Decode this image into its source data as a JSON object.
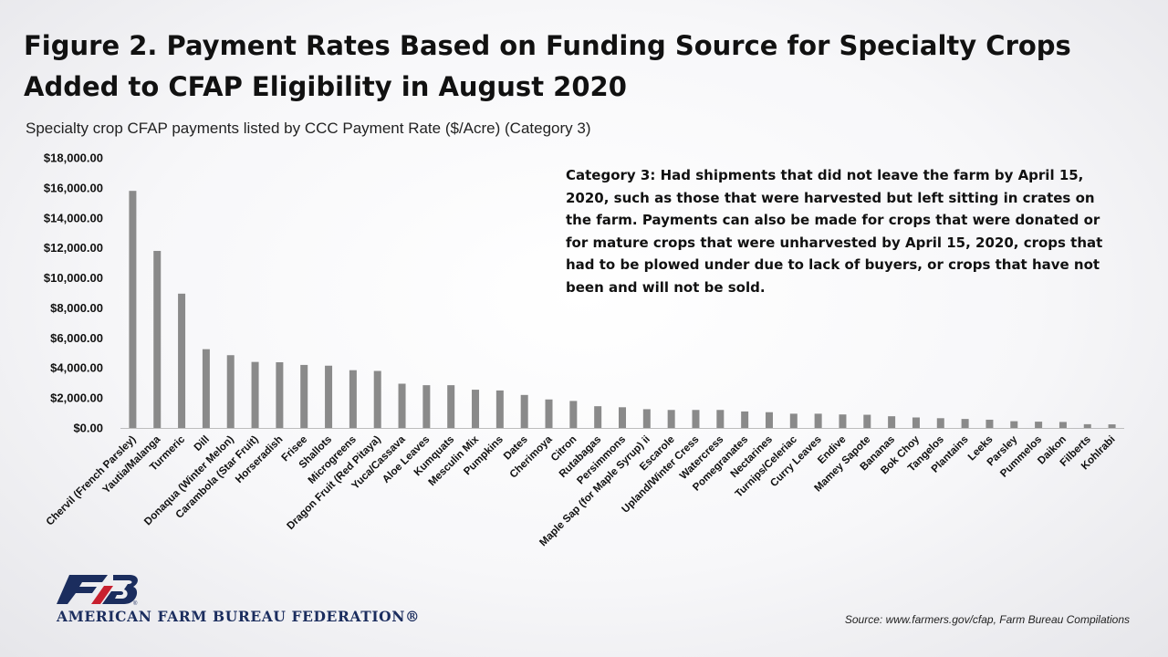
{
  "colors": {
    "bar": "#8a8a8a",
    "axis": "#bdbdbd",
    "logo_blue": "#1b2d5e",
    "logo_red": "#c8202f"
  },
  "chart_data": {
    "type": "bar",
    "title": "Figure 2. Payment Rates Based on Funding Source for Specialty Crops Added to CFAP Eligibility in August 2020",
    "subtitle": "Specialty crop CFAP payments listed by CCC Payment Rate ($/Acre) (Category 3)",
    "ylim": [
      0,
      18000
    ],
    "yticks": [
      "$0.00",
      "$2,000.00",
      "$4,000.00",
      "$6,000.00",
      "$8,000.00",
      "$10,000.00",
      "$12,000.00",
      "$14,000.00",
      "$16,000.00",
      "$18,000.00"
    ],
    "grid": false,
    "legend": "none",
    "categories": [
      "Chervil (French Parsley)",
      "Yautia/Malanga",
      "Turmeric",
      "Dill",
      "Donaqua (Winter Melon)",
      "Carambola (Star Fruit)",
      "Horseradish",
      "Frisee",
      "Shallots",
      "Microgreens",
      "Dragon Fruit (Red Pitaya)",
      "Yuca/Cassava",
      "Aloe Leaves",
      "Kumquats",
      "Mesculin Mix",
      "Pumpkins",
      "Dates",
      "Cherimoya",
      "Citron",
      "Rutabagas",
      "Persimmons",
      "Maple Sap (for Maple Syrup) ii",
      "Escarole",
      "Upland/Winter Cress",
      "Watercress",
      "Pomegranates",
      "Nectarines",
      "Turnips/Celeriac",
      "Curry Leaves",
      "Endive",
      "Mamey Sapote",
      "Bananas",
      "Bok Choy",
      "Tangelos",
      "Plantains",
      "Leeks",
      "Parsley",
      "Pummelos",
      "Daikon",
      "Filberts",
      "Kohlrabi"
    ],
    "values": [
      15800,
      11800,
      8950,
      5250,
      4850,
      4400,
      4380,
      4200,
      4150,
      3850,
      3800,
      2950,
      2850,
      2850,
      2550,
      2500,
      2200,
      1900,
      1800,
      1450,
      1380,
      1250,
      1200,
      1200,
      1200,
      1100,
      1050,
      950,
      950,
      900,
      880,
      780,
      700,
      650,
      600,
      550,
      450,
      420,
      400,
      250,
      240
    ]
  },
  "annotation": "Category 3: Had shipments that did not leave the farm by April 15, 2020, such as those that were harvested but left sitting in crates on the farm. Payments can also be made for crops that were donated or for mature crops that were unharvested by April 15, 2020, crops that had to be plowed under due to lack of buyers, or crops that have not been and will not be sold.",
  "organization": "AMERICAN FARM BUREAU FEDERATION®",
  "source": "Source: www.farmers.gov/cfap, Farm Bureau Compilations",
  "logo_icon": "farm-bureau-fb-logo-icon"
}
